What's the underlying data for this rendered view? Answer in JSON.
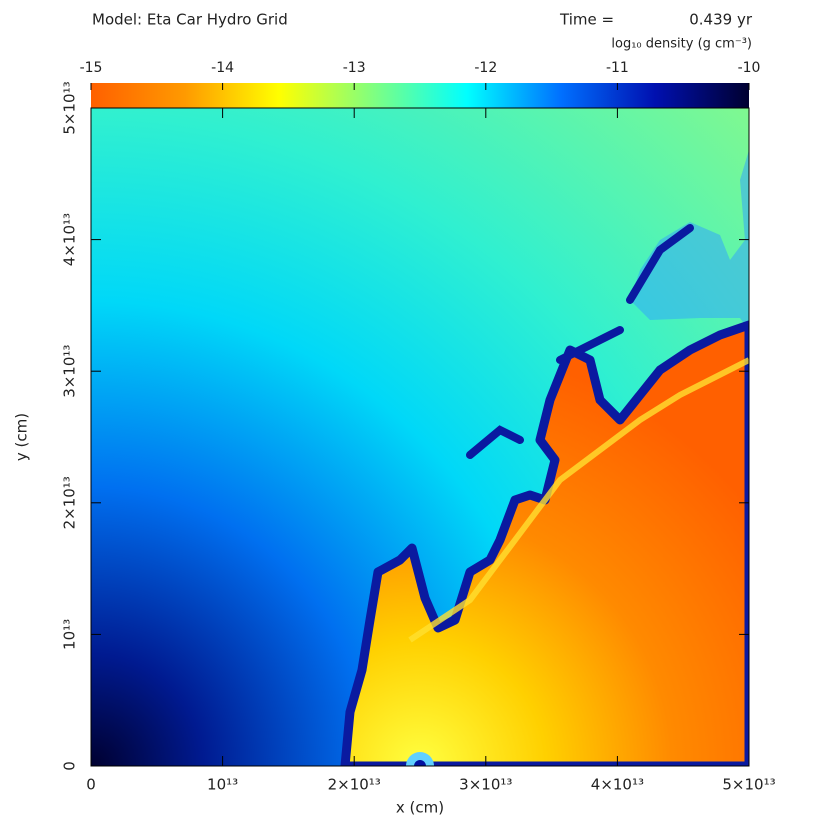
{
  "chart_data": {
    "type": "heatmap",
    "title": "Model: Eta Car Hydro Grid",
    "time_label": "Time =",
    "time": "0.439 yr",
    "colorbar_label": "log₁₀ density (g cm⁻³)",
    "colorbar_lim": [
      -15,
      -10
    ],
    "colorbar_ticks": [
      -15,
      -14,
      -13,
      -12,
      -11,
      -10
    ],
    "colormap": [
      "#ff6000",
      "#ff9a00",
      "#ffff00",
      "#80ff80",
      "#00ffff",
      "#0070ff",
      "#0010b0",
      "#000030"
    ],
    "x_label": "x (cm)",
    "y_label": "y (cm)",
    "xlim": [
      0,
      50000000000000
    ],
    "ylim": [
      0,
      50000000000000
    ],
    "xticks": [
      {
        "value": 0,
        "label": "0"
      },
      {
        "value": 10000000000000,
        "label": "10¹³"
      },
      {
        "value": 20000000000000,
        "label": "2×10¹³"
      },
      {
        "value": 30000000000000,
        "label": "3×10¹³"
      },
      {
        "value": 40000000000000,
        "label": "4×10¹³"
      },
      {
        "value": 50000000000000,
        "label": "5×10¹³"
      }
    ],
    "yticks": [
      {
        "value": 0,
        "label": "0"
      },
      {
        "value": 10000000000000,
        "label": "10¹³"
      },
      {
        "value": 20000000000000,
        "label": "2×10¹³"
      },
      {
        "value": 30000000000000,
        "label": "3×10¹³"
      },
      {
        "value": 40000000000000,
        "label": "4×10¹³"
      },
      {
        "value": 50000000000000,
        "label": "5×10¹³"
      }
    ]
  }
}
